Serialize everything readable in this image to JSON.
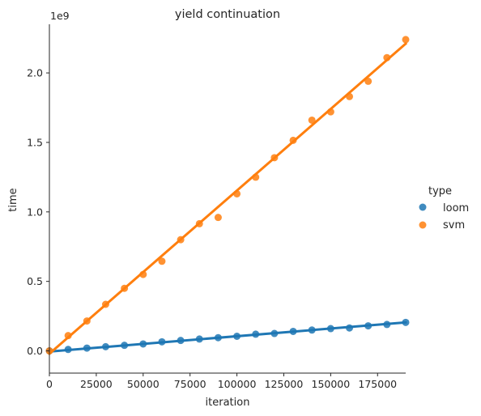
{
  "chart_data": {
    "type": "scatter",
    "title": "yield continuation",
    "xlabel": "iteration",
    "ylabel": "time",
    "y_offset_label": "1e9",
    "xlim": [
      0,
      190000
    ],
    "ylim": [
      -0.16,
      2.35
    ],
    "x_ticks": [
      0,
      25000,
      50000,
      75000,
      100000,
      125000,
      150000,
      175000
    ],
    "x_tick_labels": [
      "0",
      "25000",
      "50000",
      "75000",
      "100000",
      "125000",
      "150000",
      "175000"
    ],
    "y_ticks": [
      0.0,
      0.5,
      1.0,
      1.5,
      2.0
    ],
    "y_tick_labels": [
      "0.0",
      "0.5",
      "1.0",
      "1.5",
      "2.0"
    ],
    "grid": false,
    "legend": {
      "title": "type",
      "placement": "right",
      "entries": [
        "loom",
        "svm"
      ]
    },
    "series": [
      {
        "name": "loom",
        "color": "#1f77b4",
        "x": [
          0,
          10000,
          20000,
          30000,
          40000,
          50000,
          60000,
          70000,
          80000,
          90000,
          100000,
          110000,
          120000,
          130000,
          140000,
          150000,
          160000,
          170000,
          180000,
          190000
        ],
        "y": [
          0.0,
          0.01,
          0.02,
          0.03,
          0.04,
          0.05,
          0.065,
          0.075,
          0.085,
          0.095,
          0.105,
          0.12,
          0.125,
          0.14,
          0.15,
          0.16,
          0.165,
          0.18,
          0.19,
          0.205
        ],
        "fit": [
          [
            0,
            -0.005
          ],
          [
            190000,
            0.205
          ]
        ]
      },
      {
        "name": "svm",
        "color": "#ff7f0e",
        "x": [
          0,
          10000,
          20000,
          30000,
          40000,
          50000,
          60000,
          70000,
          80000,
          90000,
          100000,
          110000,
          120000,
          130000,
          140000,
          150000,
          160000,
          170000,
          180000,
          190000
        ],
        "y": [
          0.0,
          0.11,
          0.215,
          0.335,
          0.45,
          0.55,
          0.645,
          0.8,
          0.915,
          0.96,
          1.13,
          1.25,
          1.39,
          1.515,
          1.66,
          1.72,
          1.83,
          1.94,
          2.11,
          2.24
        ],
        "fit": [
          [
            0,
            -0.02
          ],
          [
            190000,
            2.21
          ]
        ]
      }
    ]
  }
}
